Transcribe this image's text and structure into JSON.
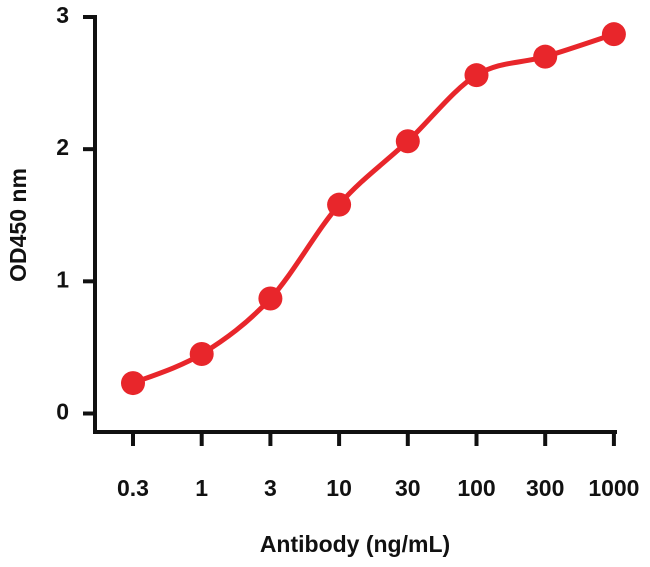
{
  "chart_data": {
    "type": "line",
    "smooth": true,
    "x_label": "Antibody (ng/mL)",
    "y_label": "OD450 nm",
    "categories": [
      "0.3",
      "1",
      "3",
      "10",
      "30",
      "100",
      "300",
      "1000"
    ],
    "series": [
      {
        "color": "#e8262b",
        "values": [
          0.23,
          0.45,
          0.87,
          1.58,
          2.06,
          2.56,
          2.7,
          2.87
        ]
      }
    ],
    "ylim": [
      -0.14,
      3
    ],
    "yticks": [
      0,
      1,
      2,
      3
    ]
  }
}
